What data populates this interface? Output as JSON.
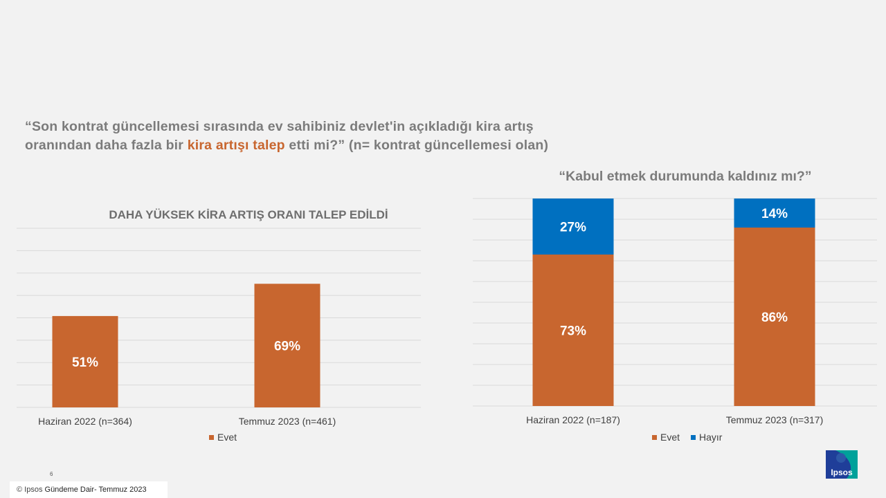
{
  "question": {
    "part1": "“Son kontrat güncellemesi sırasında ev sahibiniz devlet'in açıkladığı kira artış oranından daha fazla bir ",
    "highlight": "kira artışı talep",
    "part2": " etti mi?” (n= kontrat güncellemesi olan)"
  },
  "colors": {
    "evet": "#c8662f",
    "hayir": "#0070c0",
    "grid": "#d9d9d9"
  },
  "chart_data": [
    {
      "type": "bar",
      "title": "DAHA YÜKSEK KİRA ARTIŞ ORANI TALEP EDİLDİ",
      "categories": [
        "Haziran 2022 (n=364)",
        "Temmuz 2023 (n=461)"
      ],
      "series": [
        {
          "name": "Evet",
          "values": [
            51,
            69
          ],
          "labels": [
            "51%",
            "69%"
          ]
        }
      ],
      "ylim": [
        0,
        100
      ],
      "grid": true,
      "legend": "bottom"
    },
    {
      "type": "bar",
      "stacked": true,
      "title": "“Kabul etmek durumunda kaldınız mı?”",
      "categories": [
        "Haziran 2022 (n=187)",
        "Temmuz 2023 (n=317)"
      ],
      "series": [
        {
          "name": "Evet",
          "values": [
            73,
            86
          ],
          "labels": [
            "73%",
            "86%"
          ]
        },
        {
          "name": "Hayır",
          "values": [
            27,
            14
          ],
          "labels": [
            "27%",
            "14%"
          ]
        }
      ],
      "ylim": [
        0,
        100
      ],
      "grid": true,
      "legend": "bottom"
    }
  ],
  "footer": {
    "page": "6",
    "copyright": "© Ipsos",
    "text": " Gündeme Dair- Temmuz 2023"
  },
  "logo": {
    "text": "Ipsos"
  }
}
